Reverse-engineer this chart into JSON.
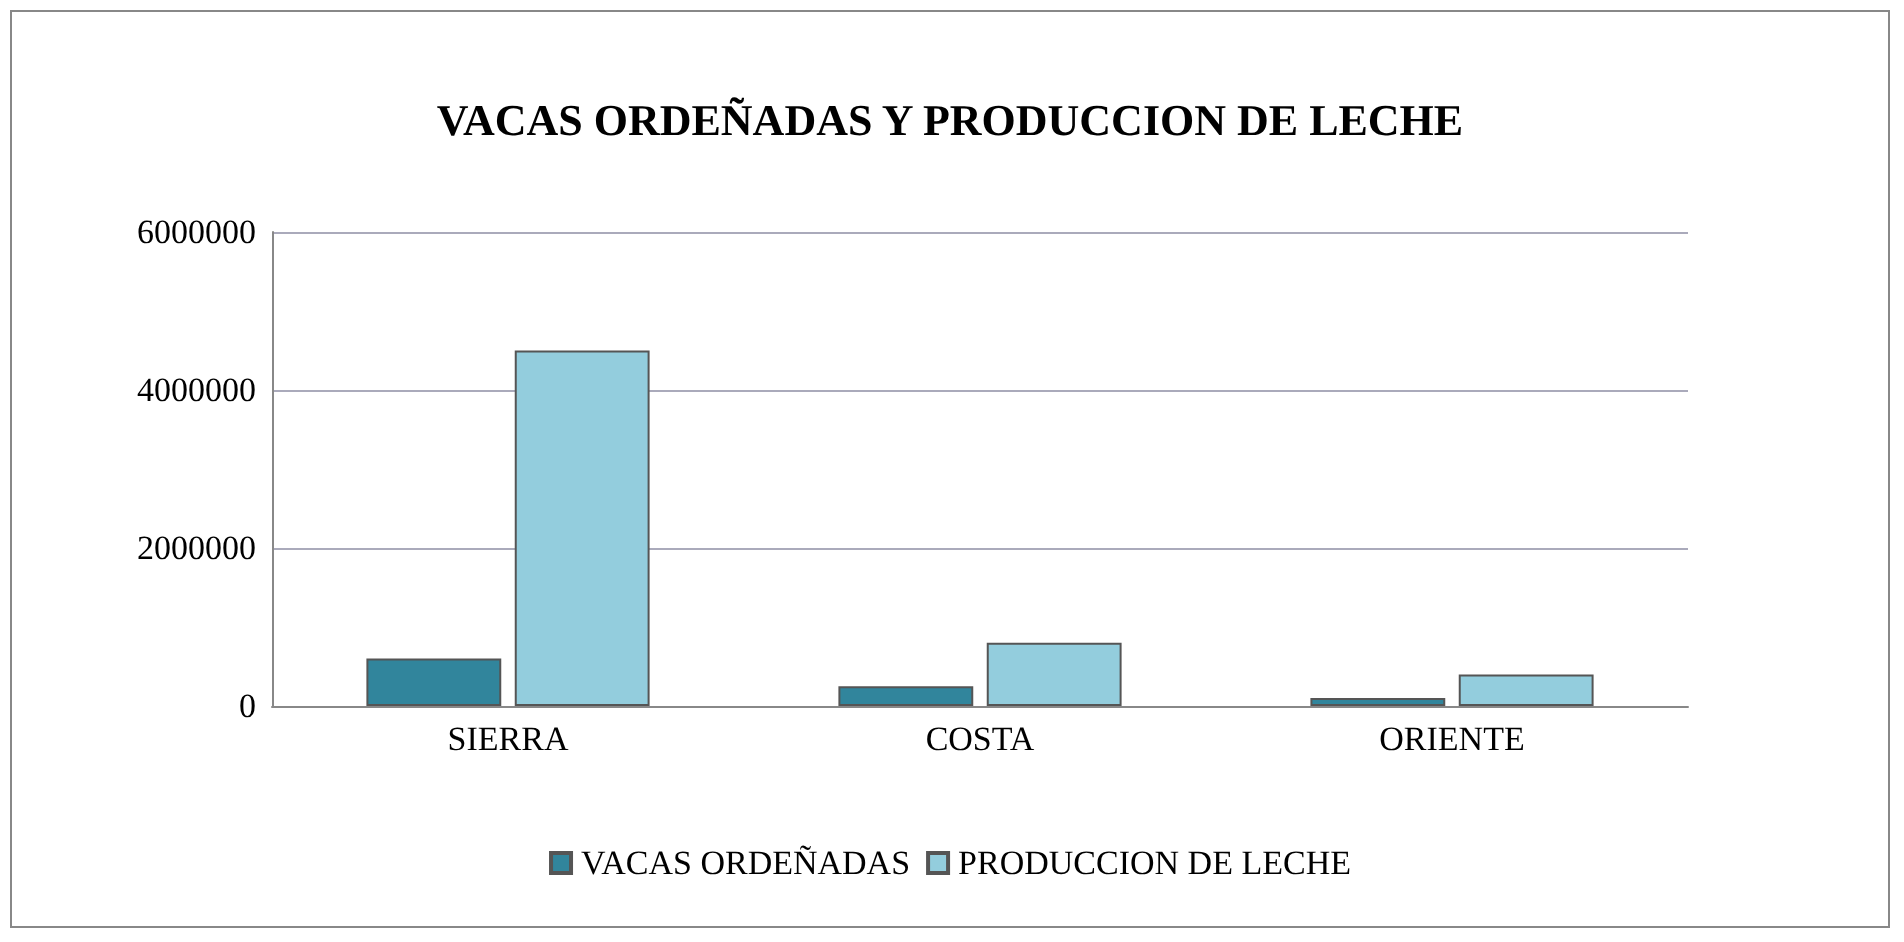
{
  "chart_data": {
    "type": "bar",
    "title": "VACAS ORDEÑADAS Y PRODUCCION DE LECHE",
    "categories": [
      "SIERRA",
      "COSTA",
      "ORIENTE"
    ],
    "series": [
      {
        "name": "VACAS ORDEÑADAS",
        "color": "#31859c",
        "values": [
          600000,
          250000,
          100000
        ]
      },
      {
        "name": "PRODUCCION DE LECHE",
        "color": "#93cddd",
        "values": [
          4500000,
          800000,
          400000
        ]
      }
    ],
    "ylim": [
      0,
      6000000
    ],
    "yticks": [
      0,
      2000000,
      4000000,
      6000000
    ],
    "grid": "y",
    "legend": "bottom"
  }
}
